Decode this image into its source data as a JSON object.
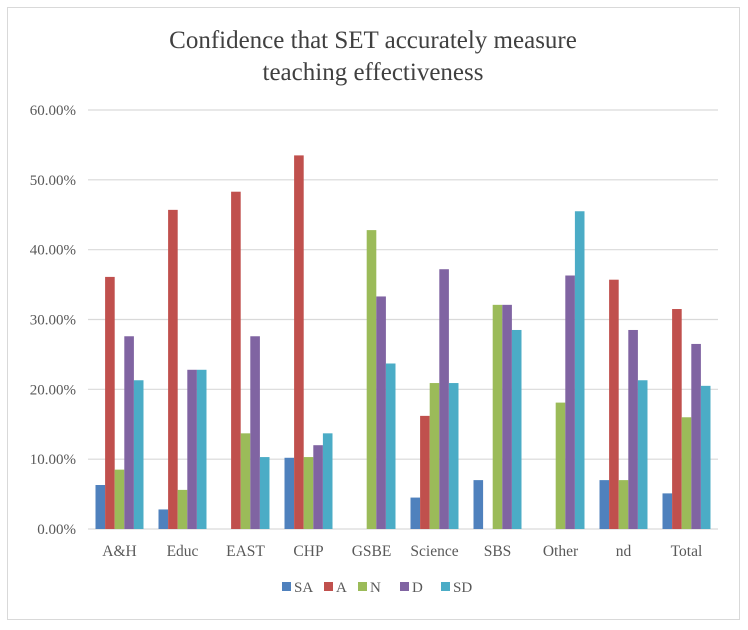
{
  "chart_data": {
    "type": "bar",
    "title": [
      "Confidence that SET accurately measure",
      "teaching effectiveness"
    ],
    "xlabel": "",
    "ylabel": "",
    "ylim": [
      0,
      60
    ],
    "yticks": [
      "0.00%",
      "10.00%",
      "20.00%",
      "30.00%",
      "40.00%",
      "50.00%",
      "60.00%"
    ],
    "grid": true,
    "legend_position": "bottom",
    "categories": [
      "A&H",
      "Educ",
      "EAST",
      "CHP",
      "GSBE",
      "Science",
      "SBS",
      "Other",
      "nd",
      "Total"
    ],
    "series": [
      {
        "name": "SA",
        "color": "#4F81BD",
        "values": [
          6.3,
          2.8,
          0,
          10.2,
          0,
          4.5,
          7.0,
          0,
          7.0,
          5.1
        ]
      },
      {
        "name": "A",
        "color": "#C0504D",
        "values": [
          36.1,
          45.7,
          48.3,
          53.5,
          0,
          16.2,
          0,
          0,
          35.7,
          31.5
        ]
      },
      {
        "name": "N",
        "color": "#9BBB59",
        "values": [
          8.5,
          5.6,
          13.7,
          10.3,
          42.8,
          20.9,
          32.1,
          18.1,
          7.0,
          16.0
        ]
      },
      {
        "name": "D",
        "color": "#8064A2",
        "values": [
          27.6,
          22.8,
          27.6,
          12.0,
          33.3,
          37.2,
          32.1,
          36.3,
          28.5,
          26.5
        ]
      },
      {
        "name": "SD",
        "color": "#4BACC6",
        "values": [
          21.3,
          22.8,
          10.3,
          13.7,
          23.7,
          20.9,
          28.5,
          45.5,
          21.3,
          20.5
        ]
      }
    ]
  }
}
